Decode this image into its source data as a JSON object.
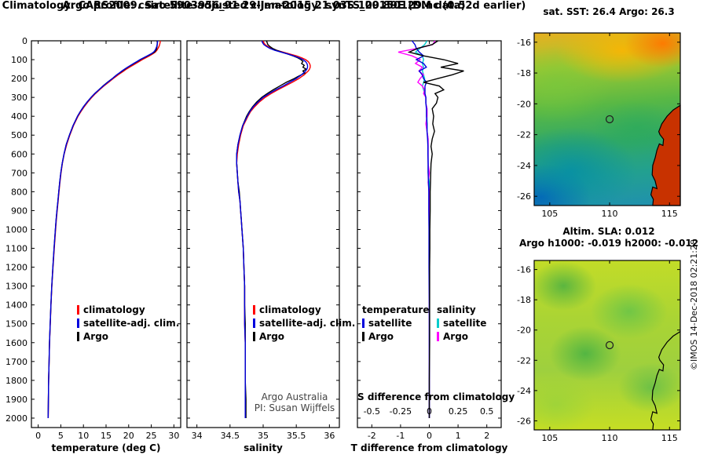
{
  "header": {
    "title1": "Argo profile: csiro 5903956_91 29-Jan-2015 21.03S 109.89E (DM data)",
    "title2": "Climatology: CARS2009. Satellite-adjusted climatology: synTS_20150129.nc (0.52d earlier)"
  },
  "copyright": "©IMOS 14-Dec-2018 02:21:28",
  "maps": {
    "lon_range": [
      103.7,
      115.9
    ],
    "lat_range": [
      -15.4,
      -26.6
    ],
    "coastline": [
      [
        115.9,
        -20.1
      ],
      [
        115.3,
        -20.4
      ],
      [
        114.8,
        -20.8
      ],
      [
        114.35,
        -21.3
      ],
      [
        114.1,
        -21.8
      ],
      [
        114.2,
        -22.0
      ],
      [
        114.5,
        -22.3
      ],
      [
        114.45,
        -22.7
      ],
      [
        114.15,
        -22.6
      ],
      [
        113.95,
        -23.0
      ],
      [
        113.8,
        -23.5
      ],
      [
        113.6,
        -24.0
      ],
      [
        113.55,
        -24.6
      ],
      [
        113.8,
        -25.0
      ],
      [
        113.95,
        -25.5
      ],
      [
        113.6,
        -25.4
      ],
      [
        113.45,
        -25.9
      ],
      [
        113.65,
        -26.2
      ],
      [
        113.6,
        -26.6
      ]
    ],
    "sst": {
      "title": "sat. SST: 26.4 Argo: 26.3",
      "xticks": [
        105,
        110,
        115
      ],
      "yticks": [
        -16,
        -18,
        -20,
        -22,
        -24,
        -26
      ],
      "marker": {
        "lon": 110,
        "lat": -21
      }
    },
    "sla": {
      "title1": "Altim. SLA: 0.012",
      "title2": "Argo h1000: -0.019 h2000: -0.012",
      "xticks": [
        105,
        110,
        115
      ],
      "yticks": [
        -16,
        -18,
        -20,
        -22,
        -24,
        -26
      ],
      "marker": {
        "lon": 110,
        "lat": -21
      }
    }
  },
  "chart_data": [
    {
      "name": "temperature-profile",
      "type": "line",
      "xlabel": "temperature (deg C)",
      "xlim": [
        -1.5,
        31.5
      ],
      "xticks": [
        0,
        5,
        10,
        15,
        20,
        25,
        30
      ],
      "ylim": [
        0,
        2050
      ],
      "yticks": [
        0,
        100,
        200,
        300,
        400,
        500,
        600,
        700,
        800,
        900,
        1000,
        1100,
        1200,
        1300,
        1400,
        1500,
        1600,
        1700,
        1800,
        1900,
        2000
      ],
      "depths": [
        0,
        10,
        20,
        30,
        40,
        50,
        60,
        70,
        80,
        90,
        100,
        110,
        120,
        130,
        140,
        150,
        160,
        170,
        180,
        190,
        200,
        220,
        240,
        260,
        280,
        300,
        325,
        350,
        375,
        400,
        450,
        500,
        550,
        600,
        650,
        700,
        750,
        800,
        850,
        900,
        950,
        1000,
        1100,
        1200,
        1300,
        1400,
        1500,
        1600,
        1700,
        1800,
        1900,
        2000
      ],
      "legend": [
        {
          "label": "climatology",
          "color": "#ff0000"
        },
        {
          "label": "satellite-adj. clim.",
          "color": "#0000dd"
        },
        {
          "label": "Argo",
          "color": "#000000"
        }
      ],
      "series": [
        {
          "name": "climatology",
          "color": "#ff0000",
          "values": [
            27.0,
            26.95,
            26.85,
            26.7,
            26.5,
            26.25,
            25.9,
            25.3,
            24.6,
            23.8,
            23.0,
            22.3,
            21.6,
            20.9,
            20.2,
            19.5,
            18.9,
            18.3,
            17.7,
            17.15,
            16.6,
            15.55,
            14.5,
            13.55,
            12.65,
            11.85,
            10.95,
            10.15,
            9.45,
            8.8,
            7.8,
            7.0,
            6.3,
            5.75,
            5.35,
            5.05,
            4.8,
            4.6,
            4.4,
            4.2,
            4.0,
            3.85,
            3.55,
            3.28,
            3.02,
            2.82,
            2.66,
            2.52,
            2.41,
            2.31,
            2.26,
            2.21
          ]
        },
        {
          "name": "Argo",
          "color": "#000000",
          "values": [
            26.3,
            26.32,
            26.3,
            26.28,
            26.2,
            26.05,
            25.7,
            25.0,
            24.2,
            23.4,
            22.6,
            21.9,
            21.2,
            20.5,
            19.8,
            19.2,
            18.6,
            18.0,
            17.4,
            16.9,
            16.4,
            15.3,
            14.3,
            13.4,
            12.5,
            11.7,
            10.8,
            10.0,
            9.3,
            8.7,
            7.7,
            6.9,
            6.2,
            5.7,
            5.3,
            5.0,
            4.75,
            4.55,
            4.35,
            4.15,
            3.95,
            3.8,
            3.5,
            3.25,
            3.0,
            2.8,
            2.65,
            2.5,
            2.4,
            2.3,
            2.25,
            2.2
          ]
        },
        {
          "name": "satellite-adj. clim.",
          "color": "#0000dd",
          "values": [
            26.4,
            26.38,
            26.3,
            26.2,
            26.05,
            25.85,
            25.5,
            24.9,
            24.1,
            23.3,
            22.5,
            21.8,
            21.1,
            20.4,
            19.75,
            19.1,
            18.5,
            17.95,
            17.4,
            16.9,
            16.4,
            15.35,
            14.35,
            13.4,
            12.5,
            11.7,
            10.8,
            10.0,
            9.3,
            8.7,
            7.7,
            6.9,
            6.2,
            5.7,
            5.3,
            5.0,
            4.75,
            4.55,
            4.35,
            4.15,
            3.95,
            3.8,
            3.5,
            3.25,
            3.0,
            2.8,
            2.65,
            2.5,
            2.4,
            2.3,
            2.25,
            2.2
          ]
        }
      ]
    },
    {
      "name": "salinity-profile",
      "type": "line",
      "xlabel": "salinity",
      "xlim": [
        33.85,
        36.15
      ],
      "xticks": [
        34,
        34.5,
        35,
        35.5,
        36
      ],
      "ylim": [
        0,
        2050
      ],
      "yticks": [
        0,
        100,
        200,
        300,
        400,
        500,
        600,
        700,
        800,
        900,
        1000,
        1100,
        1200,
        1300,
        1400,
        1500,
        1600,
        1700,
        1800,
        1900,
        2000
      ],
      "annotation": [
        "Argo Australia",
        "PI: Susan Wijffels"
      ],
      "depths": [
        0,
        10,
        20,
        30,
        40,
        50,
        60,
        70,
        80,
        90,
        100,
        110,
        120,
        130,
        140,
        150,
        160,
        170,
        180,
        190,
        200,
        220,
        240,
        260,
        280,
        300,
        325,
        350,
        375,
        400,
        450,
        500,
        550,
        600,
        650,
        700,
        750,
        800,
        850,
        900,
        950,
        1000,
        1100,
        1200,
        1300,
        1400,
        1500,
        1600,
        1700,
        1800,
        1900,
        2000
      ],
      "legend": [
        {
          "label": "climatology",
          "color": "#ff0000"
        },
        {
          "label": "satellite-adj. clim.",
          "color": "#0000dd"
        },
        {
          "label": "Argo",
          "color": "#000000"
        }
      ],
      "series": [
        {
          "name": "climatology",
          "color": "#ff0000",
          "values": [
            35.0,
            35.01,
            35.03,
            35.07,
            35.12,
            35.2,
            35.3,
            35.4,
            35.5,
            35.58,
            35.64,
            35.68,
            35.7,
            35.71,
            35.71,
            35.7,
            35.68,
            35.65,
            35.62,
            35.58,
            35.54,
            35.44,
            35.33,
            35.22,
            35.12,
            35.03,
            34.94,
            34.87,
            34.81,
            34.77,
            34.7,
            34.66,
            34.63,
            34.61,
            34.6,
            34.61,
            34.62,
            34.63,
            34.65,
            34.66,
            34.67,
            34.68,
            34.7,
            34.71,
            34.72,
            34.72,
            34.72,
            34.73,
            34.73,
            34.73,
            34.73,
            34.73
          ]
        },
        {
          "name": "Argo",
          "color": "#000000",
          "values": [
            35.05,
            35.06,
            35.07,
            35.1,
            35.14,
            35.2,
            35.28,
            35.37,
            35.45,
            35.52,
            35.57,
            35.6,
            35.58,
            35.62,
            35.6,
            35.65,
            35.6,
            35.63,
            35.58,
            35.52,
            35.47,
            35.35,
            35.25,
            35.15,
            35.06,
            34.98,
            34.9,
            34.84,
            34.79,
            34.75,
            34.69,
            34.65,
            34.62,
            34.6,
            34.6,
            34.61,
            34.62,
            34.64,
            34.65,
            34.66,
            34.67,
            34.68,
            34.7,
            34.71,
            34.72,
            34.72,
            34.73,
            34.73,
            34.73,
            34.73,
            34.74,
            34.74
          ]
        },
        {
          "name": "satellite-adj. clim.",
          "color": "#0000dd",
          "values": [
            34.98,
            34.99,
            35.01,
            35.05,
            35.1,
            35.17,
            35.27,
            35.37,
            35.46,
            35.54,
            35.6,
            35.64,
            35.66,
            35.67,
            35.67,
            35.66,
            35.64,
            35.61,
            35.58,
            35.54,
            35.5,
            35.4,
            35.3,
            35.19,
            35.09,
            35.0,
            34.92,
            34.85,
            34.8,
            34.76,
            34.69,
            34.65,
            34.62,
            34.6,
            34.6,
            34.61,
            34.62,
            34.63,
            34.65,
            34.66,
            34.67,
            34.68,
            34.7,
            34.71,
            34.72,
            34.72,
            34.72,
            34.73,
            34.73,
            34.73,
            34.73,
            34.73
          ]
        }
      ]
    },
    {
      "name": "difference-profile",
      "type": "line",
      "xlabel": "T difference from climatology",
      "x2label": "S difference from climatology",
      "xlim": [
        -2.5,
        2.5
      ],
      "xticks": [
        -2,
        -1,
        0,
        1,
        2
      ],
      "s_ticks": [
        "-0.5",
        "-0.25",
        "0",
        "0.25",
        "0.5"
      ],
      "s_scale": 4,
      "ylim": [
        0,
        2050
      ],
      "yticks": [
        0,
        100,
        200,
        300,
        400,
        500,
        600,
        700,
        800,
        900,
        1000,
        1100,
        1200,
        1300,
        1400,
        1500,
        1600,
        1700,
        1800,
        1900,
        2000
      ],
      "legend_columns": [
        {
          "header": "temperature",
          "items": [
            {
              "label": "satellite",
              "color": "#0000dd"
            },
            {
              "label": "Argo",
              "color": "#000000"
            }
          ]
        },
        {
          "header": "salinity",
          "items": [
            {
              "label": "satellite",
              "color": "#00cccc"
            },
            {
              "label": "Argo",
              "color": "#ff00ff"
            }
          ]
        }
      ],
      "depths": [
        0,
        20,
        40,
        60,
        80,
        100,
        120,
        140,
        160,
        180,
        200,
        220,
        240,
        260,
        280,
        300,
        330,
        360,
        400,
        440,
        480,
        520,
        560,
        600,
        650,
        700,
        750,
        800,
        900,
        1000,
        1100,
        1200,
        1400,
        1600,
        1800,
        2000
      ],
      "series": [
        {
          "name": "salinity satellite",
          "color": "#00cccc",
          "axis": "S",
          "values": [
            -0.02,
            -0.04,
            -0.08,
            -0.12,
            -0.06,
            -0.05,
            -0.06,
            -0.05,
            -0.06,
            -0.05,
            -0.04,
            -0.05,
            -0.06,
            -0.05,
            -0.04,
            -0.03,
            -0.03,
            -0.02,
            -0.02,
            -0.02,
            -0.02,
            -0.01,
            -0.01,
            -0.01,
            -0.01,
            -0.01,
            0.0,
            0.0,
            0.0,
            0.0,
            0.0,
            0.0,
            0.0,
            0.0,
            0.0,
            0.0
          ]
        },
        {
          "name": "salinity Argo",
          "color": "#ff00ff",
          "axis": "S",
          "values": [
            0.05,
            0.03,
            -0.1,
            -0.27,
            -0.15,
            -0.08,
            -0.12,
            -0.06,
            -0.09,
            -0.05,
            -0.08,
            -0.1,
            -0.06,
            -0.04,
            -0.05,
            -0.03,
            -0.03,
            -0.02,
            -0.02,
            -0.03,
            -0.02,
            -0.01,
            -0.01,
            -0.01,
            -0.01,
            0.0,
            -0.01,
            0.0,
            0.0,
            0.0,
            0.0,
            0.0,
            0.0,
            0.0,
            0.0,
            0.0
          ]
        },
        {
          "name": "temperature satellite",
          "color": "#0000dd",
          "axis": "T",
          "values": [
            -0.6,
            -0.5,
            -0.45,
            -0.35,
            -0.2,
            -0.45,
            -0.2,
            -0.1,
            -0.35,
            -0.25,
            -0.2,
            -0.1,
            -0.15,
            -0.15,
            -0.15,
            -0.12,
            -0.12,
            -0.1,
            -0.1,
            -0.08,
            -0.08,
            -0.06,
            -0.05,
            -0.05,
            -0.04,
            -0.04,
            -0.03,
            -0.02,
            -0.02,
            -0.01,
            -0.01,
            -0.01,
            0.0,
            0.0,
            0.0,
            0.0
          ]
        },
        {
          "name": "temperature Argo",
          "color": "#000000",
          "axis": "T",
          "values": [
            0.3,
            0.1,
            -0.4,
            -0.7,
            -0.2,
            0.5,
            1.0,
            0.4,
            1.2,
            0.8,
            0.3,
            -0.2,
            0.35,
            0.5,
            0.2,
            0.3,
            0.25,
            0.1,
            0.15,
            0.12,
            0.18,
            0.1,
            0.06,
            0.1,
            0.06,
            0.05,
            0.04,
            0.03,
            0.03,
            0.02,
            0.02,
            0.01,
            0.01,
            0.01,
            0.0,
            0.0
          ]
        }
      ]
    }
  ]
}
